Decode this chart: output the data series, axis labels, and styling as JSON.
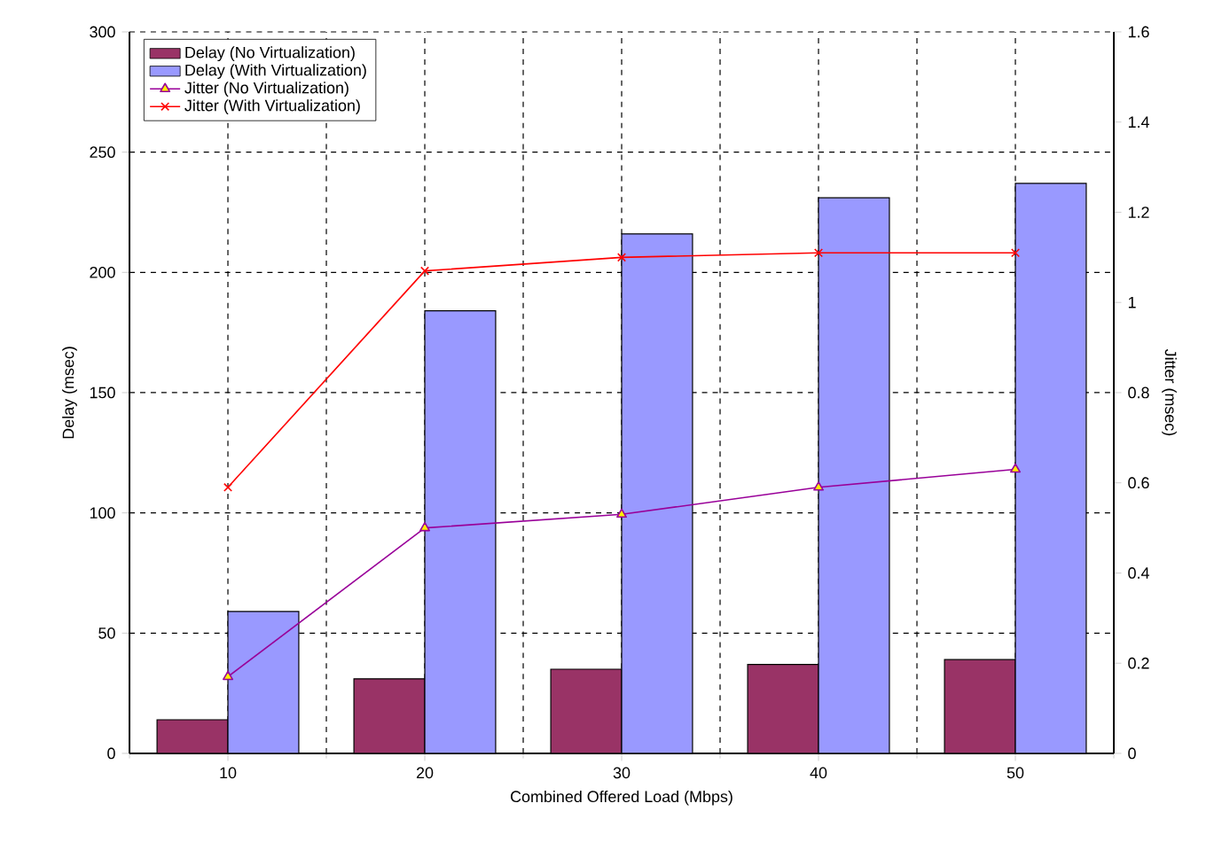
{
  "chart_data": {
    "type": "bar",
    "xlabel": "Combined Offered Load (Mbps)",
    "ylabel": "Delay (msec)",
    "y2label": "Jitter (msec)",
    "categories": [
      "10",
      "20",
      "30",
      "40",
      "50"
    ],
    "series": [
      {
        "name": "Delay (No Virtualization)",
        "color": "#993366",
        "values": [
          14,
          31,
          35,
          37,
          39
        ]
      },
      {
        "name": "Delay (With Virtualization)",
        "color": "#9999ff",
        "values": [
          59,
          184,
          216,
          231,
          237
        ]
      },
      {
        "name": "Jitter (No Virtualization)",
        "type": "line",
        "axis": "y2",
        "marker": "triangle",
        "color": "#990099",
        "values": [
          0.17,
          0.5,
          0.53,
          0.59,
          0.63
        ]
      },
      {
        "name": "Jitter (With Virtualization)",
        "type": "line",
        "axis": "y2",
        "marker": "cross",
        "color": "#ff0000",
        "values": [
          0.59,
          1.07,
          1.1,
          1.11,
          1.11
        ]
      }
    ],
    "ylim": [
      0,
      300
    ],
    "yticks": [
      0,
      50,
      100,
      150,
      200,
      250,
      300
    ],
    "y2lim": [
      0,
      1.6
    ],
    "y2ticks": [
      0,
      0.2,
      0.4,
      0.6,
      0.8,
      1,
      1.2,
      1.4,
      1.6
    ],
    "grid": true,
    "legend": "top left"
  }
}
